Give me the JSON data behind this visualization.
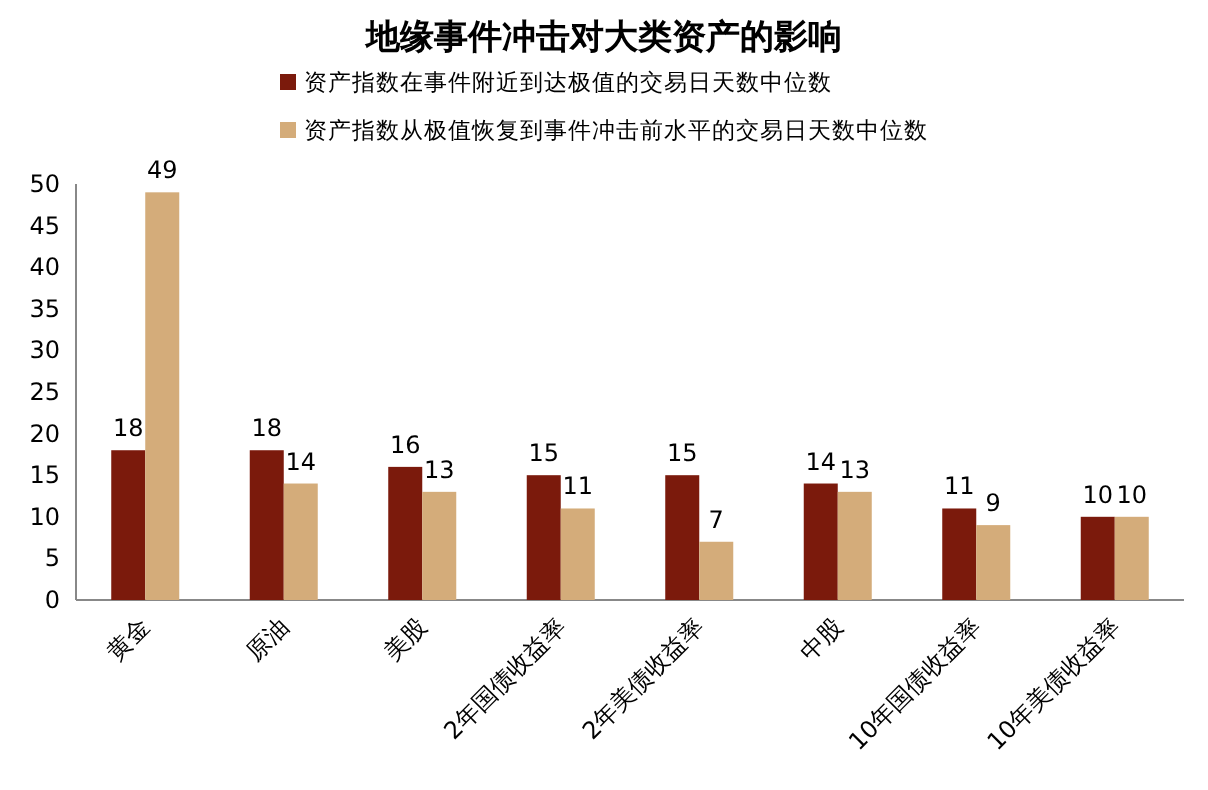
{
  "chart_data": {
    "type": "bar",
    "title": "地缘事件冲击对大类资产的影响",
    "categories": [
      "黄金",
      "原油",
      "美股",
      "2年国债收益率",
      "2年美债收益率",
      "中股",
      "10年国债收益率",
      "10年美债收益率"
    ],
    "series": [
      {
        "name": "资产指数在事件附近到达极值的交易日天数中位数",
        "color": "#7b1a0c",
        "values": [
          18,
          18,
          16,
          15,
          15,
          14,
          11,
          10
        ]
      },
      {
        "name": "资产指数从极值恢复到事件冲击前水平的交易日天数中位数",
        "color": "#d4ac7a",
        "values": [
          49,
          14,
          13,
          11,
          7,
          13,
          9,
          10
        ]
      }
    ],
    "ylim": [
      0,
      50
    ],
    "yticks": [
      0,
      5,
      10,
      15,
      20,
      25,
      30,
      35,
      40,
      45,
      50
    ],
    "grid": false,
    "legend": "top",
    "data_labels": true
  }
}
